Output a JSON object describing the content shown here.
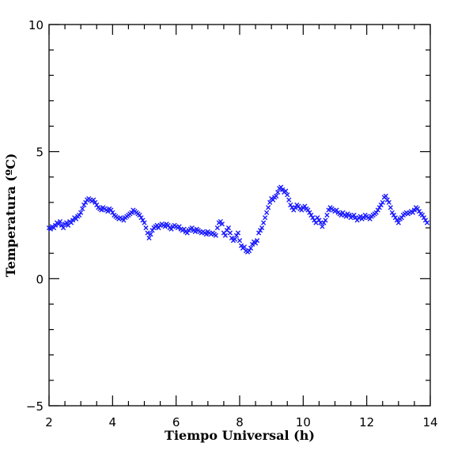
{
  "chart_data": {
    "type": "scatter",
    "xlabel": "Tiempo Universal (h)",
    "ylabel": "Temperatura (ºC)",
    "xlim": [
      2,
      14
    ],
    "ylim": [
      -5,
      10
    ],
    "x_ticks": [
      2,
      4,
      6,
      8,
      10,
      12,
      14
    ],
    "y_ticks": [
      -5,
      0,
      5,
      10
    ],
    "x_tick_labels": [
      "2",
      "4",
      "6",
      "8",
      "10",
      "12",
      "14"
    ],
    "y_tick_labels": [
      "−5",
      "0",
      "5",
      "10"
    ],
    "grid": false,
    "marker": "x",
    "marker_color": "#1a1aff",
    "series": [
      {
        "points": [
          [
            2.0,
            2.0
          ],
          [
            2.05,
            1.95
          ],
          [
            2.1,
            2.05
          ],
          [
            2.15,
            2.0
          ],
          [
            2.2,
            2.1
          ],
          [
            2.25,
            2.2
          ],
          [
            2.3,
            2.15
          ],
          [
            2.35,
            2.25
          ],
          [
            2.4,
            2.1
          ],
          [
            2.45,
            2.0
          ],
          [
            2.5,
            2.15
          ],
          [
            2.55,
            2.2
          ],
          [
            2.6,
            2.1
          ],
          [
            2.65,
            2.25
          ],
          [
            2.7,
            2.2
          ],
          [
            2.75,
            2.3
          ],
          [
            2.8,
            2.4
          ],
          [
            2.85,
            2.35
          ],
          [
            2.9,
            2.45
          ],
          [
            2.95,
            2.5
          ],
          [
            3.0,
            2.6
          ],
          [
            3.05,
            2.75
          ],
          [
            3.1,
            2.9
          ],
          [
            3.15,
            3.0
          ],
          [
            3.2,
            3.1
          ],
          [
            3.25,
            3.15
          ],
          [
            3.3,
            3.1
          ],
          [
            3.35,
            3.05
          ],
          [
            3.4,
            3.1
          ],
          [
            3.45,
            3.0
          ],
          [
            3.5,
            2.9
          ],
          [
            3.55,
            2.8
          ],
          [
            3.6,
            2.75
          ],
          [
            3.65,
            2.7
          ],
          [
            3.7,
            2.8
          ],
          [
            3.75,
            2.75
          ],
          [
            3.8,
            2.7
          ],
          [
            3.85,
            2.65
          ],
          [
            3.9,
            2.75
          ],
          [
            3.95,
            2.7
          ],
          [
            4.0,
            2.6
          ],
          [
            4.05,
            2.5
          ],
          [
            4.1,
            2.45
          ],
          [
            4.15,
            2.4
          ],
          [
            4.2,
            2.35
          ],
          [
            4.25,
            2.4
          ],
          [
            4.3,
            2.35
          ],
          [
            4.35,
            2.3
          ],
          [
            4.4,
            2.4
          ],
          [
            4.45,
            2.45
          ],
          [
            4.5,
            2.5
          ],
          [
            4.55,
            2.55
          ],
          [
            4.6,
            2.6
          ],
          [
            4.65,
            2.7
          ],
          [
            4.7,
            2.65
          ],
          [
            4.75,
            2.6
          ],
          [
            4.8,
            2.55
          ],
          [
            4.85,
            2.5
          ],
          [
            4.9,
            2.4
          ],
          [
            4.95,
            2.3
          ],
          [
            5.0,
            2.2
          ],
          [
            5.05,
            2.0
          ],
          [
            5.1,
            1.8
          ],
          [
            5.15,
            1.6
          ],
          [
            5.2,
            1.75
          ],
          [
            5.25,
            1.9
          ],
          [
            5.3,
            2.0
          ],
          [
            5.35,
            2.05
          ],
          [
            5.4,
            2.1
          ],
          [
            5.45,
            2.0
          ],
          [
            5.5,
            2.1
          ],
          [
            5.55,
            2.15
          ],
          [
            5.6,
            2.1
          ],
          [
            5.65,
            2.05
          ],
          [
            5.7,
            2.15
          ],
          [
            5.75,
            2.1
          ],
          [
            5.8,
            2.0
          ],
          [
            5.85,
            1.95
          ],
          [
            5.9,
            2.05
          ],
          [
            5.95,
            2.1
          ],
          [
            6.0,
            2.05
          ],
          [
            6.05,
            2.0
          ],
          [
            6.1,
            2.05
          ],
          [
            6.15,
            1.95
          ],
          [
            6.2,
            1.9
          ],
          [
            6.25,
            1.95
          ],
          [
            6.3,
            1.85
          ],
          [
            6.35,
            1.8
          ],
          [
            6.4,
            1.9
          ],
          [
            6.45,
            1.95
          ],
          [
            6.5,
            2.0
          ],
          [
            6.55,
            1.9
          ],
          [
            6.6,
            1.85
          ],
          [
            6.65,
            1.95
          ],
          [
            6.7,
            1.9
          ],
          [
            6.75,
            1.85
          ],
          [
            6.8,
            1.8
          ],
          [
            6.85,
            1.85
          ],
          [
            6.9,
            1.8
          ],
          [
            6.95,
            1.75
          ],
          [
            7.0,
            1.85
          ],
          [
            7.05,
            1.8
          ],
          [
            7.1,
            1.75
          ],
          [
            7.15,
            1.8
          ],
          [
            7.2,
            1.75
          ],
          [
            7.25,
            1.7
          ],
          [
            7.3,
            2.0
          ],
          [
            7.35,
            2.2
          ],
          [
            7.4,
            2.25
          ],
          [
            7.45,
            2.15
          ],
          [
            7.5,
            1.8
          ],
          [
            7.55,
            1.7
          ],
          [
            7.6,
            1.9
          ],
          [
            7.65,
            2.0
          ],
          [
            7.7,
            1.8
          ],
          [
            7.75,
            1.6
          ],
          [
            7.8,
            1.5
          ],
          [
            7.85,
            1.55
          ],
          [
            7.9,
            1.7
          ],
          [
            7.95,
            1.8
          ],
          [
            8.0,
            1.5
          ],
          [
            8.05,
            1.3
          ],
          [
            8.1,
            1.2
          ],
          [
            8.15,
            1.25
          ],
          [
            8.2,
            1.1
          ],
          [
            8.25,
            1.05
          ],
          [
            8.3,
            1.1
          ],
          [
            8.35,
            1.2
          ],
          [
            8.4,
            1.35
          ],
          [
            8.45,
            1.45
          ],
          [
            8.5,
            1.4
          ],
          [
            8.55,
            1.5
          ],
          [
            8.6,
            1.8
          ],
          [
            8.65,
            1.9
          ],
          [
            8.7,
            2.0
          ],
          [
            8.75,
            2.2
          ],
          [
            8.8,
            2.4
          ],
          [
            8.85,
            2.6
          ],
          [
            8.9,
            2.8
          ],
          [
            8.95,
            3.0
          ],
          [
            9.0,
            3.15
          ],
          [
            9.05,
            3.1
          ],
          [
            9.1,
            3.2
          ],
          [
            9.15,
            3.25
          ],
          [
            9.2,
            3.4
          ],
          [
            9.25,
            3.55
          ],
          [
            9.3,
            3.6
          ],
          [
            9.35,
            3.5
          ],
          [
            9.4,
            3.4
          ],
          [
            9.45,
            3.45
          ],
          [
            9.5,
            3.3
          ],
          [
            9.55,
            3.1
          ],
          [
            9.6,
            2.9
          ],
          [
            9.65,
            2.8
          ],
          [
            9.7,
            2.7
          ],
          [
            9.75,
            2.8
          ],
          [
            9.8,
            2.9
          ],
          [
            9.85,
            2.85
          ],
          [
            9.9,
            2.75
          ],
          [
            9.95,
            2.7
          ],
          [
            10.0,
            2.8
          ],
          [
            10.05,
            2.85
          ],
          [
            10.1,
            2.75
          ],
          [
            10.15,
            2.7
          ],
          [
            10.2,
            2.6
          ],
          [
            10.25,
            2.5
          ],
          [
            10.3,
            2.4
          ],
          [
            10.35,
            2.3
          ],
          [
            10.4,
            2.2
          ],
          [
            10.45,
            2.4
          ],
          [
            10.5,
            2.3
          ],
          [
            10.55,
            2.2
          ],
          [
            10.6,
            2.05
          ],
          [
            10.65,
            2.2
          ],
          [
            10.7,
            2.3
          ],
          [
            10.75,
            2.5
          ],
          [
            10.8,
            2.7
          ],
          [
            10.85,
            2.8
          ],
          [
            10.9,
            2.75
          ],
          [
            10.95,
            2.7
          ],
          [
            11.0,
            2.65
          ],
          [
            11.05,
            2.7
          ],
          [
            11.1,
            2.6
          ],
          [
            11.15,
            2.55
          ],
          [
            11.2,
            2.5
          ],
          [
            11.25,
            2.6
          ],
          [
            11.3,
            2.5
          ],
          [
            11.35,
            2.45
          ],
          [
            11.4,
            2.55
          ],
          [
            11.45,
            2.5
          ],
          [
            11.5,
            2.4
          ],
          [
            11.55,
            2.45
          ],
          [
            11.6,
            2.5
          ],
          [
            11.65,
            2.4
          ],
          [
            11.7,
            2.3
          ],
          [
            11.75,
            2.4
          ],
          [
            11.8,
            2.45
          ],
          [
            11.85,
            2.35
          ],
          [
            11.9,
            2.4
          ],
          [
            11.95,
            2.5
          ],
          [
            12.0,
            2.45
          ],
          [
            12.05,
            2.4
          ],
          [
            12.1,
            2.35
          ],
          [
            12.15,
            2.45
          ],
          [
            12.2,
            2.5
          ],
          [
            12.25,
            2.55
          ],
          [
            12.3,
            2.6
          ],
          [
            12.35,
            2.7
          ],
          [
            12.4,
            2.8
          ],
          [
            12.45,
            2.9
          ],
          [
            12.5,
            3.0
          ],
          [
            12.55,
            3.2
          ],
          [
            12.6,
            3.25
          ],
          [
            12.65,
            3.1
          ],
          [
            12.7,
            3.0
          ],
          [
            12.75,
            2.8
          ],
          [
            12.8,
            2.6
          ],
          [
            12.85,
            2.5
          ],
          [
            12.9,
            2.4
          ],
          [
            12.95,
            2.3
          ],
          [
            13.0,
            2.2
          ],
          [
            13.05,
            2.35
          ],
          [
            13.1,
            2.4
          ],
          [
            13.15,
            2.5
          ],
          [
            13.2,
            2.55
          ],
          [
            13.25,
            2.6
          ],
          [
            13.3,
            2.55
          ],
          [
            13.35,
            2.6
          ],
          [
            13.4,
            2.65
          ],
          [
            13.45,
            2.6
          ],
          [
            13.5,
            2.7
          ],
          [
            13.55,
            2.8
          ],
          [
            13.6,
            2.75
          ],
          [
            13.65,
            2.65
          ],
          [
            13.7,
            2.55
          ],
          [
            13.75,
            2.5
          ],
          [
            13.8,
            2.4
          ],
          [
            13.85,
            2.3
          ],
          [
            13.9,
            2.2
          ]
        ]
      }
    ]
  }
}
